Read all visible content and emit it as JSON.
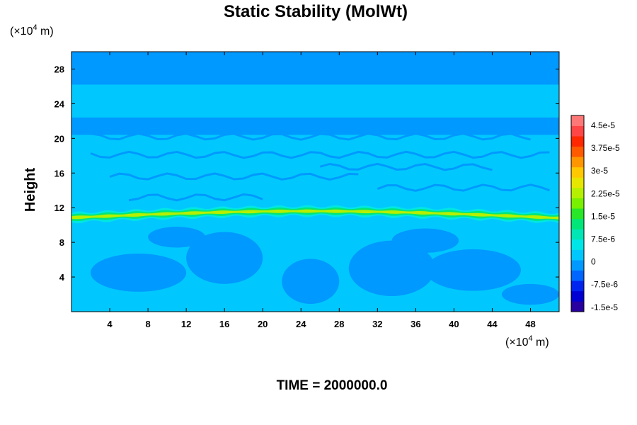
{
  "chart_data": {
    "type": "heatmap",
    "title": "Static Stability (MolWt)",
    "ylabel": "Height",
    "xlabel": "",
    "x_unit": {
      "prefix": "(×10",
      "exp": "4",
      "suffix": " m)"
    },
    "y_unit": {
      "prefix": "(×10",
      "exp": "4",
      "suffix": " m)"
    },
    "xlim": [
      0,
      51
    ],
    "ylim": [
      0,
      30
    ],
    "x_ticks": [
      "4",
      "8",
      "12",
      "16",
      "20",
      "24",
      "28",
      "32",
      "36",
      "40",
      "44",
      "48"
    ],
    "y_ticks": [
      "4",
      "8",
      "12",
      "16",
      "20",
      "24",
      "28"
    ],
    "colorbar": {
      "min": -1.5e-05,
      "max": 5e-05,
      "tick_labels": [
        "4.5e-5",
        "3.75e-5",
        "3e-5",
        "2.25e-5",
        "1.5e-5",
        "7.5e-6",
        "0",
        "-7.5e-6",
        "-1.5e-5"
      ],
      "colors": [
        "#2800a0",
        "#0000d2",
        "#0024f0",
        "#0066ff",
        "#0099ff",
        "#00c8ff",
        "#00e6e6",
        "#00e6b4",
        "#00e678",
        "#28e628",
        "#78f000",
        "#b4f000",
        "#e6e600",
        "#ffc800",
        "#ff9600",
        "#ff5a00",
        "#ff2800",
        "#ff4646",
        "#ff7878"
      ]
    },
    "grid": false
  },
  "footer": {
    "time_label": "TIME = 2000000.0"
  }
}
